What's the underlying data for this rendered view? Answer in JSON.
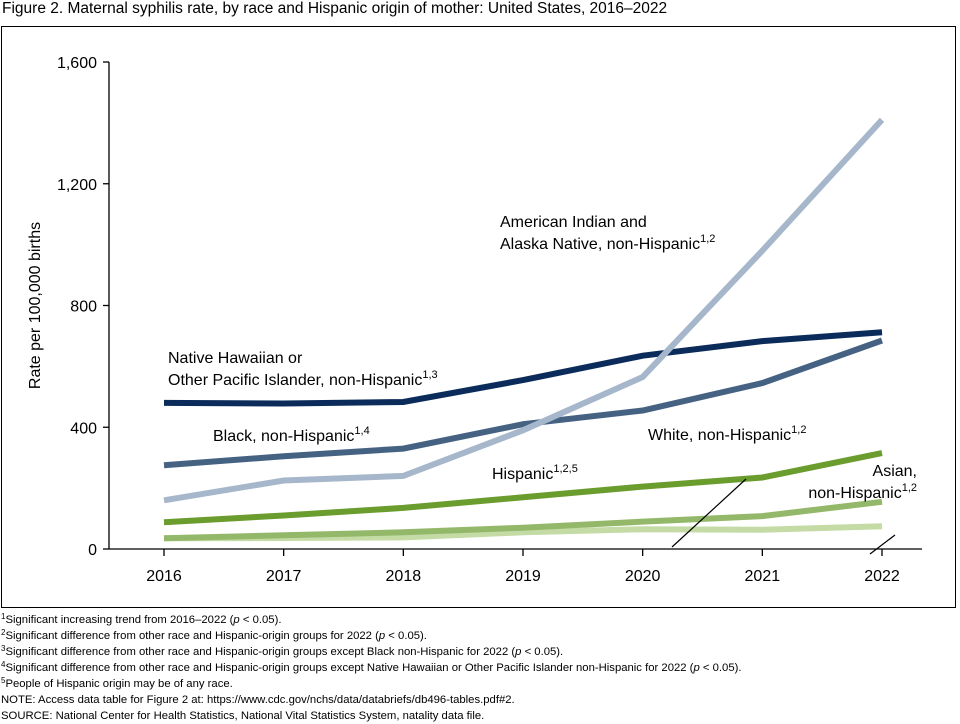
{
  "title": "Figure 2. Maternal syphilis rate, by race and Hispanic origin of mother: United States, 2016–2022",
  "chart_data": {
    "type": "line",
    "title": "Figure 2. Maternal syphilis rate, by race and Hispanic origin of mother: United States, 2016–2022",
    "xlabel": "",
    "ylabel": "Rate per 100,000 births",
    "x": [
      2016,
      2017,
      2018,
      2019,
      2020,
      2021,
      2022
    ],
    "x_tick_labels": [
      "2016",
      "2017",
      "2018",
      "2019",
      "2020",
      "2021",
      "2022"
    ],
    "ylim": [
      0,
      1600
    ],
    "y_ticks": [
      0,
      400,
      800,
      1200,
      1600
    ],
    "y_tick_labels": [
      "0",
      "400",
      "800",
      "1,200",
      "1,600"
    ],
    "grid": false,
    "legend": "direct labels",
    "series": [
      {
        "name": "American Indian and Alaska Native, non-Hispanic",
        "label_lines": [
          "American Indian and",
          "Alaska Native, non-Hispanic"
        ],
        "sup": "1,2",
        "color": "#a7b7cb",
        "values": [
          160,
          225,
          240,
          390,
          565,
          980,
          1410
        ]
      },
      {
        "name": "Native Hawaiian or Other Pacific Islander, non-Hispanic",
        "label_lines": [
          "Native Hawaiian or",
          "Other Pacific Islander, non-Hispanic"
        ],
        "sup": "1,3",
        "color": "#0b2c5a",
        "values": [
          480,
          478,
          483,
          555,
          635,
          683,
          712
        ]
      },
      {
        "name": "Black, non-Hispanic",
        "label_lines": [
          "Black, non-Hispanic"
        ],
        "sup": "1,4",
        "color": "#456283",
        "values": [
          275,
          305,
          330,
          410,
          455,
          545,
          685
        ]
      },
      {
        "name": "Hispanic",
        "label_lines": [
          "Hispanic"
        ],
        "sup": "1,2,5",
        "color": "#6a9c2e",
        "values": [
          88,
          110,
          135,
          170,
          205,
          235,
          315
        ]
      },
      {
        "name": "White, non-Hispanic",
        "label_lines": [
          "White, non-Hispanic"
        ],
        "sup": "1,2",
        "color": "#94b86a",
        "values": [
          35,
          45,
          55,
          70,
          90,
          108,
          155
        ]
      },
      {
        "name": "Asian, non-Hispanic",
        "label_lines": [
          "Asian,",
          "non-Hispanic"
        ],
        "sup": "1,2",
        "color": "#c4dba6",
        "values": [
          35,
          36,
          38,
          55,
          65,
          63,
          75
        ]
      }
    ]
  },
  "footnotes": [
    {
      "sup": "1",
      "text": "Significant increasing trend from 2016–2022 (",
      "em": "p",
      "tail": " < 0.05)."
    },
    {
      "sup": "2",
      "text": "Significant difference from other race and Hispanic-origin groups for 2022 (",
      "em": "p",
      "tail": " < 0.05)."
    },
    {
      "sup": "3",
      "text": "Significant difference from other race and Hispanic-origin groups except Black non-Hispanic for 2022 (",
      "em": "p",
      "tail": " < 0.05)."
    },
    {
      "sup": "4",
      "text": "Significant difference from other race and Hispanic-origin groups except Native Hawaiian or Other Pacific Islander non-Hispanic for 2022 (",
      "em": "p",
      "tail": " < 0.05)."
    },
    {
      "sup": "5",
      "text": "People of Hispanic origin may be of any race.",
      "em": "",
      "tail": ""
    }
  ],
  "note": "NOTE: Access data table for Figure 2 at: https://www.cdc.gov/nchs/data/databriefs/db496-tables.pdf#2.",
  "source": "SOURCE: National Center for Health Statistics, National Vital Statistics System, natality data file."
}
